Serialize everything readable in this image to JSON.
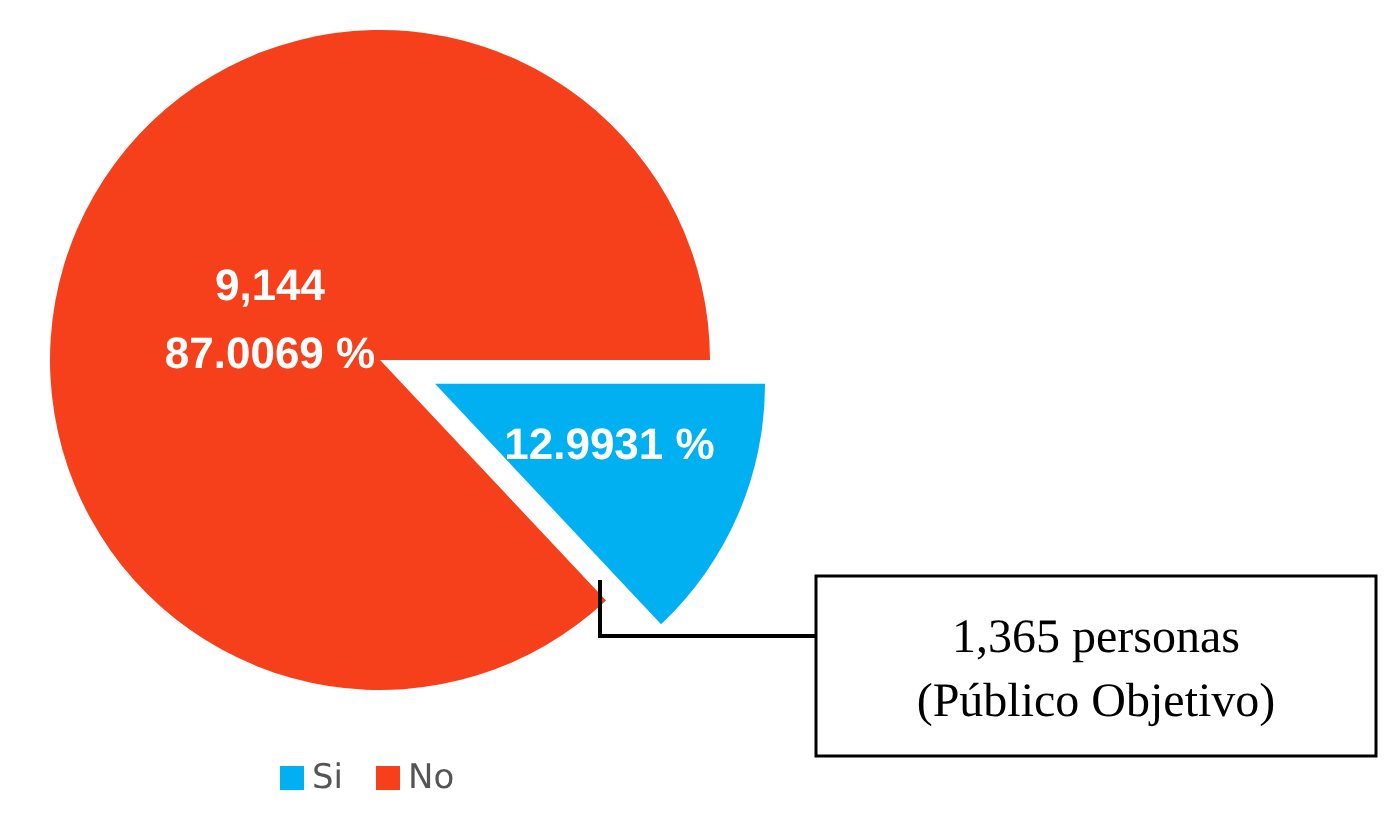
{
  "chart_data": {
    "type": "pie",
    "categories": [
      "Si",
      "No"
    ],
    "values": [
      12.9931,
      87.0069
    ],
    "colors": [
      "#00b0f0",
      "#f5401b"
    ],
    "value_labels": [
      "12.9931 %",
      "9,144\n87.0069 %"
    ],
    "annotations": [
      "1,365 personas\n(Público Objetivo)"
    ],
    "legend": "bottom"
  }
}
